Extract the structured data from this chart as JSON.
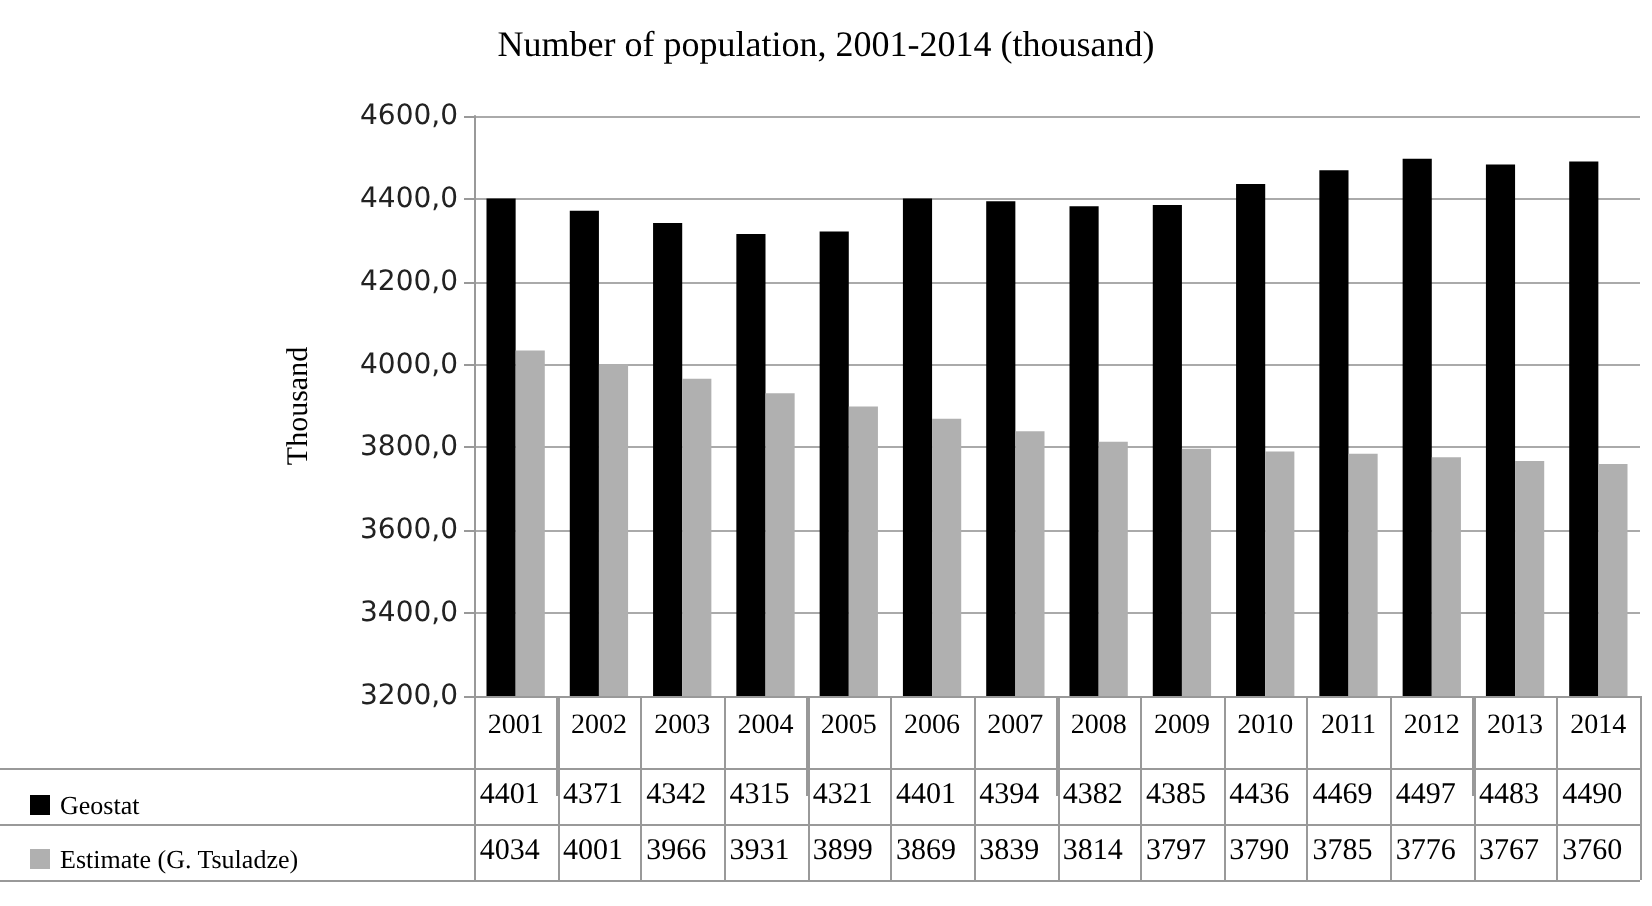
{
  "chart_data": {
    "type": "bar",
    "title": "Number of population, 2001-2014 (thousand)",
    "ylabel": "Thousand",
    "categories": [
      "2001",
      "2002",
      "2003",
      "2004",
      "2005",
      "2006",
      "2007",
      "2008",
      "2009",
      "2010",
      "2011",
      "2012",
      "2013",
      "2014"
    ],
    "series": [
      {
        "name": "Geostat",
        "color": "#000000",
        "values": [
          4401,
          4371,
          4342,
          4315,
          4321,
          4401,
          4394,
          4382,
          4385,
          4436,
          4469,
          4497,
          4483,
          4490
        ]
      },
      {
        "name": "Estimate (G. Tsuladze)",
        "color": "#b0b0b0",
        "values": [
          4034,
          4001,
          3966,
          3931,
          3899,
          3869,
          3839,
          3814,
          3797,
          3790,
          3785,
          3776,
          3767,
          3760
        ]
      }
    ],
    "ylim": [
      3200,
      4600
    ],
    "yticks": [
      {
        "value": 3200,
        "label": "3200,0"
      },
      {
        "value": 3400,
        "label": "3400,0"
      },
      {
        "value": 3600,
        "label": "3600,0"
      },
      {
        "value": 3800,
        "label": "3800,0"
      },
      {
        "value": 4000,
        "label": "4000,0"
      },
      {
        "value": 4200,
        "label": "4200,0"
      },
      {
        "value": 4400,
        "label": "4400,0"
      },
      {
        "value": 4600,
        "label": "4600,0"
      }
    ],
    "grid": "y",
    "legend": "bottom",
    "data_labels": true
  }
}
